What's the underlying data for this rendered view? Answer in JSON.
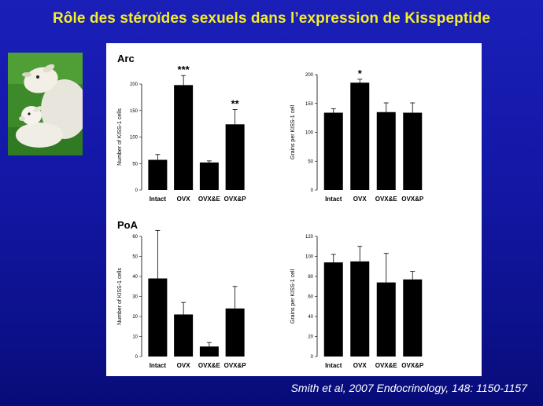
{
  "title": "Rôle des stéroïdes sexuels dans l’expression de Kisspeptide",
  "citation": "Smith et al, 2007 Endocrinology, 148: 1150-1157",
  "photo_icon": "sheep-and-lamb-photo",
  "colors": {
    "background": "#1418a8",
    "title": "#f4ee2a",
    "bars": "#000000",
    "panel": "#ffffff"
  },
  "regions": {
    "arc": "Arc",
    "poa": "PoA"
  },
  "chart_data": [
    {
      "type": "bar",
      "region": "Arc",
      "categories": [
        "Intact",
        "OVX",
        "OVX&E",
        "OVX&P"
      ],
      "values": [
        57,
        198,
        52,
        124
      ],
      "errors": [
        10,
        18,
        3,
        28
      ],
      "significance": [
        "",
        "***",
        "",
        "**"
      ],
      "ylabel": "Number of KISS-1 cells",
      "ylim": [
        0,
        200
      ],
      "yticks": [
        0,
        50,
        100,
        150,
        200
      ]
    },
    {
      "type": "bar",
      "region": "Arc",
      "categories": [
        "Intact",
        "OVX",
        "OVX&E",
        "OVX&P"
      ],
      "values": [
        134,
        186,
        135,
        134
      ],
      "errors": [
        7,
        6,
        16,
        17
      ],
      "significance": [
        "",
        "*",
        "",
        ""
      ],
      "ylabel": "Grains per KISS-1 cell",
      "ylim": [
        0,
        200
      ],
      "yticks": [
        0,
        50,
        100,
        150,
        200
      ]
    },
    {
      "type": "bar",
      "region": "PoA",
      "categories": [
        "Intact",
        "OVX",
        "OVX&E",
        "OVX&P"
      ],
      "values": [
        39,
        21,
        5,
        24
      ],
      "errors": [
        24,
        6,
        2,
        11
      ],
      "significance": [
        "",
        "",
        "",
        ""
      ],
      "ylabel": "Number of KISS-1 cells",
      "ylim": [
        0,
        60
      ],
      "yticks": [
        0,
        10,
        20,
        30,
        40,
        50,
        60
      ]
    },
    {
      "type": "bar",
      "region": "PoA",
      "categories": [
        "Intact",
        "OVX",
        "OVX&E",
        "OVX&P"
      ],
      "values": [
        94,
        95,
        74,
        77
      ],
      "errors": [
        8,
        15,
        29,
        8
      ],
      "significance": [
        "",
        "",
        "",
        ""
      ],
      "ylabel": "Grains per KISS-1 cell",
      "ylim": [
        0,
        120
      ],
      "yticks": [
        0,
        20,
        40,
        60,
        80,
        100,
        120
      ]
    }
  ]
}
